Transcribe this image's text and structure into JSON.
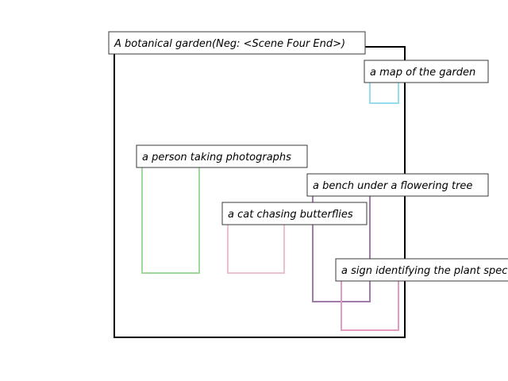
{
  "scene": {
    "label": "A botanical garden(Neg: <Scene Four End>)",
    "stroke": "#000000"
  },
  "regions": [
    {
      "id": "map",
      "label": "a map of the garden",
      "color": "#96dcee"
    },
    {
      "id": "photographer",
      "label": "a person taking photographs",
      "color": "#a0d89c"
    },
    {
      "id": "bench",
      "label": "a bench under a flowering tree",
      "color": "#a07ca8"
    },
    {
      "id": "cat",
      "label": "a cat chasing butterflies",
      "color": "#ecc0d0"
    },
    {
      "id": "sign",
      "label": "a sign identifying the plant species",
      "color": "#e29cc4"
    }
  ]
}
